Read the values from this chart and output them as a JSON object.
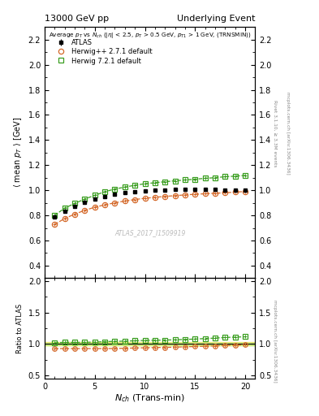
{
  "title_left": "13000 GeV pp",
  "title_right": "Underlying Event",
  "watermark": "ATLAS_2017_I1509919",
  "right_label1": "Rivet 3.1.10, ≥ 3.3M events",
  "right_label2": "mcplots.cern.ch [arXiv:1306.3436]",
  "xlim": [
    0,
    21
  ],
  "ylim_main": [
    0.3,
    2.3
  ],
  "ylim_ratio": [
    0.45,
    2.05
  ],
  "yticks_main": [
    0.4,
    0.6,
    0.8,
    1.0,
    1.2,
    1.4,
    1.6,
    1.8,
    2.0,
    2.2
  ],
  "yticks_ratio": [
    0.5,
    1.0,
    1.5,
    2.0
  ],
  "xticks": [
    0,
    5,
    10,
    15,
    20
  ],
  "atlas_x": [
    1,
    2,
    3,
    4,
    5,
    6,
    7,
    8,
    9,
    10,
    11,
    12,
    13,
    14,
    15,
    16,
    17,
    18,
    19,
    20
  ],
  "atlas_y": [
    0.785,
    0.835,
    0.873,
    0.905,
    0.932,
    0.952,
    0.968,
    0.98,
    0.988,
    0.995,
    1.0,
    1.004,
    1.007,
    1.008,
    1.008,
    1.007,
    1.005,
    1.003,
    1.002,
    1.002
  ],
  "atlas_yerr": [
    0.012,
    0.009,
    0.008,
    0.007,
    0.006,
    0.006,
    0.005,
    0.005,
    0.005,
    0.005,
    0.005,
    0.005,
    0.005,
    0.005,
    0.005,
    0.005,
    0.005,
    0.005,
    0.005,
    0.005
  ],
  "herwig1_x": [
    1,
    2,
    3,
    4,
    5,
    6,
    7,
    8,
    9,
    10,
    11,
    12,
    13,
    14,
    15,
    16,
    17,
    18,
    19,
    20
  ],
  "herwig1_y": [
    0.728,
    0.775,
    0.81,
    0.84,
    0.865,
    0.884,
    0.9,
    0.914,
    0.926,
    0.936,
    0.944,
    0.951,
    0.957,
    0.963,
    0.968,
    0.972,
    0.976,
    0.98,
    0.985,
    0.99
  ],
  "herwig1_color": "#d4692a",
  "herwig1_label": "Herwig++ 2.7.1 default",
  "herwig2_x": [
    1,
    2,
    3,
    4,
    5,
    6,
    7,
    8,
    9,
    10,
    11,
    12,
    13,
    14,
    15,
    16,
    17,
    18,
    19,
    20
  ],
  "herwig2_y": [
    0.8,
    0.858,
    0.895,
    0.93,
    0.96,
    0.988,
    1.01,
    1.025,
    1.04,
    1.052,
    1.06,
    1.068,
    1.075,
    1.082,
    1.088,
    1.095,
    1.1,
    1.108,
    1.112,
    1.118
  ],
  "herwig2_color": "#3a9e20",
  "herwig2_label": "Herwig 7.2.1 default",
  "atlas_color": "#000000",
  "ratio_band_color_green": "#c8f080",
  "ratio_band_color_yellow": "#f0e060"
}
